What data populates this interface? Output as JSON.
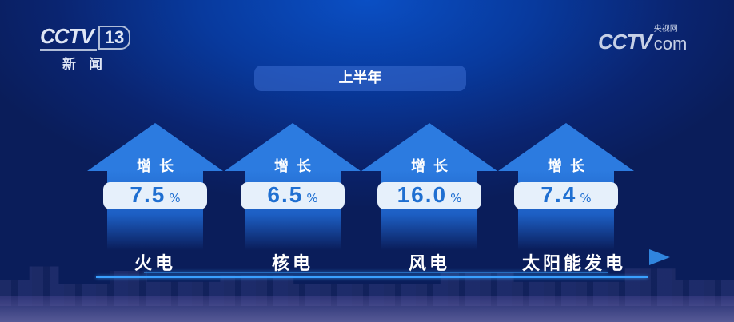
{
  "logo_left": {
    "brand": "CCTV",
    "channel": "13",
    "subtitle": "新闻"
  },
  "logo_right": {
    "brand": "CCTV",
    "cn": "央视网",
    "suffix": "com"
  },
  "period": "上半年",
  "accent": "#2c7be0",
  "items": [
    {
      "category": "火电",
      "label": "增长",
      "value": "7.5",
      "unit": "%"
    },
    {
      "category": "核电",
      "label": "增长",
      "value": "6.5",
      "unit": "%"
    },
    {
      "category": "风电",
      "label": "增长",
      "value": "16.0",
      "unit": "%"
    },
    {
      "category": "太阳能发电",
      "label": "增长",
      "value": "7.4",
      "unit": "%"
    }
  ]
}
